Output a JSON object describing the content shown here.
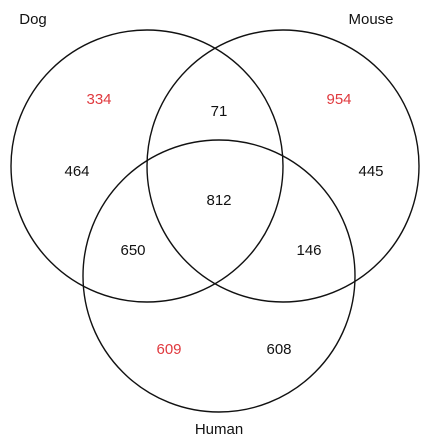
{
  "sets": [
    {
      "label": "Dog"
    },
    {
      "label": "Mouse"
    },
    {
      "label": "Human"
    }
  ],
  "regions": [
    {
      "value": 334,
      "color": "#e0393e"
    },
    {
      "value": 71,
      "color": "#111111"
    },
    {
      "value": 954,
      "color": "#e0393e"
    },
    {
      "value": 464,
      "color": "#111111"
    },
    {
      "value": 812,
      "color": "#111111"
    },
    {
      "value": 445,
      "color": "#111111"
    },
    {
      "value": 650,
      "color": "#111111"
    },
    {
      "value": 146,
      "color": "#111111"
    },
    {
      "value": 609,
      "color": "#e0393e"
    },
    {
      "value": 608,
      "color": "#111111"
    }
  ]
}
